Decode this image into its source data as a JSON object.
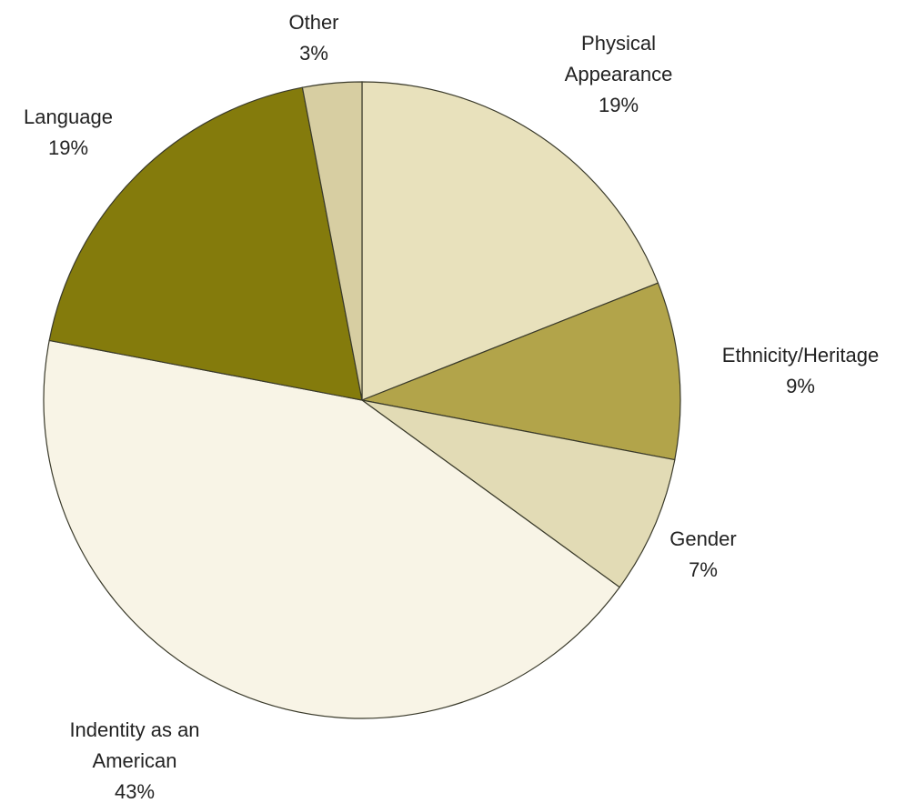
{
  "chart_data": {
    "type": "pie",
    "start_angle_deg": 0,
    "direction": "clockwise",
    "slices": [
      {
        "label_lines": [
          "Physical",
          "Appearance"
        ],
        "value_text": "19%",
        "value": 19,
        "color": "#e8e1bc"
      },
      {
        "label_lines": [
          "Ethnicity/Heritage"
        ],
        "value_text": "9%",
        "value": 9,
        "color": "#b2a44a"
      },
      {
        "label_lines": [
          "Gender"
        ],
        "value_text": "7%",
        "value": 7,
        "color": "#e2dbb5"
      },
      {
        "label_lines": [
          "Indentity as an",
          "American"
        ],
        "value_text": "43%",
        "value": 43,
        "color": "#f8f4e6"
      },
      {
        "label_lines": [
          "Language"
        ],
        "value_text": "19%",
        "value": 19,
        "color": "#847b0c"
      },
      {
        "label_lines": [
          "Other"
        ],
        "value_text": "3%",
        "value": 3,
        "color": "#d7cea2"
      }
    ]
  }
}
